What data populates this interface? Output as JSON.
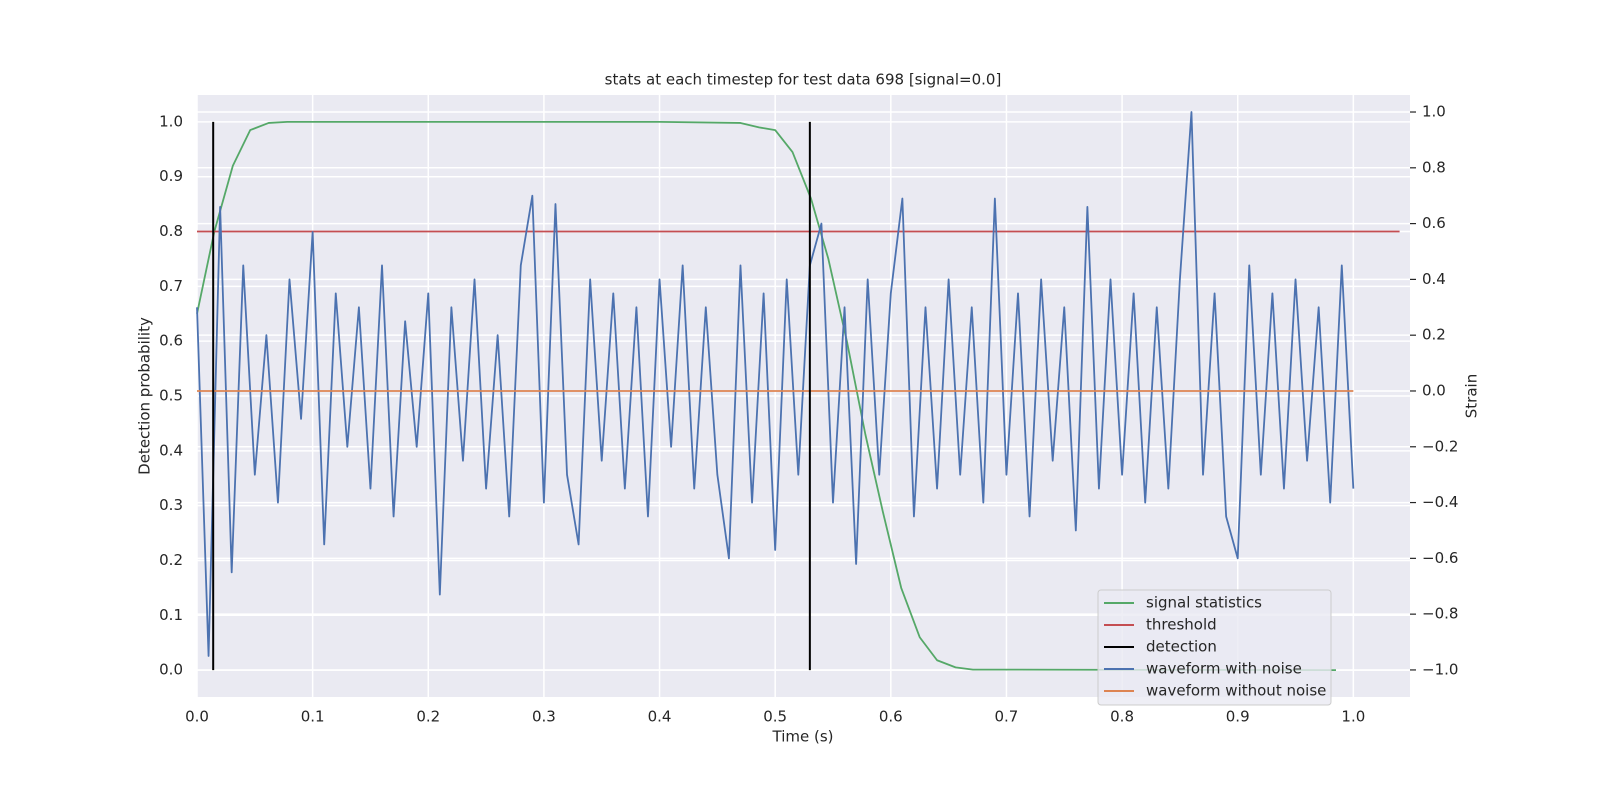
{
  "chart_data": {
    "type": "line",
    "title": "stats at each timestep for test data 698 [signal=0.0]",
    "xlabel": "Time (s)",
    "ylabel": "Detection probability",
    "y2label": "Strain",
    "xlim": [
      0,
      1.049
    ],
    "ylim": [
      -0.049,
      1.049
    ],
    "y2lim": [
      -1.097,
      1.061
    ],
    "xticks": [
      {
        "value": 0,
        "label": "0.0"
      },
      0.1,
      0.2,
      0.3,
      0.4,
      0.5,
      0.6,
      0.7,
      0.8,
      0.9,
      {
        "value": 1,
        "label": "1.0"
      }
    ],
    "yticks": [
      {
        "value": 0,
        "label": "0.0"
      },
      0.1,
      0.2,
      0.3,
      0.4,
      0.5,
      0.6,
      0.7,
      0.8,
      0.9,
      {
        "value": 1,
        "label": "1.0"
      }
    ],
    "y2ticks": [
      {
        "value": -1,
        "label": "−1.0"
      },
      {
        "value": -0.8,
        "label": "−0.8"
      },
      {
        "value": -0.6,
        "label": "−0.6"
      },
      {
        "value": -0.4,
        "label": "−0.4"
      },
      {
        "value": -0.2,
        "label": "−0.2"
      },
      {
        "value": 0,
        "label": "0.0"
      },
      0.2,
      0.4,
      0.6,
      0.8,
      {
        "value": 1,
        "label": "1.0"
      }
    ],
    "grid": true,
    "legend": "lower right",
    "series": [
      {
        "name": "signal statistics",
        "color": "#55a868",
        "axis": "y",
        "x": [
          0,
          0.015,
          0.031,
          0.046,
          0.062,
          0.078,
          0.2,
          0.4,
          0.47,
          0.486,
          0.5,
          0.515,
          0.531,
          0.546,
          0.562,
          0.578,
          0.593,
          0.609,
          0.625,
          0.64,
          0.656,
          0.671,
          0.985
        ],
        "values": [
          0.65,
          0.8,
          0.92,
          0.985,
          0.998,
          1.0,
          1.0,
          1.0,
          0.998,
          0.99,
          0.985,
          0.945,
          0.86,
          0.75,
          0.6,
          0.43,
          0.29,
          0.15,
          0.06,
          0.018,
          0.005,
          0.001,
          0
        ]
      },
      {
        "name": "threshold",
        "color": "#c44e52",
        "axis": "y",
        "x": [
          0,
          1.04
        ],
        "values": [
          0.8,
          0.8
        ]
      },
      {
        "name": "detection",
        "color": "#000000",
        "axis": "y",
        "vlines": true,
        "x": [
          0.014,
          0.53
        ],
        "ymin": 0,
        "ymax": 1
      },
      {
        "name": "waveform with noise",
        "color": "#4c72b0",
        "axis": "y2",
        "x": [
          0,
          0.01,
          0.02,
          0.03,
          0.04,
          0.05,
          0.06,
          0.07,
          0.08,
          0.09,
          0.1,
          0.11,
          0.12,
          0.13,
          0.14,
          0.15,
          0.16,
          0.17,
          0.18,
          0.19,
          0.2,
          0.21,
          0.22,
          0.23,
          0.24,
          0.25,
          0.26,
          0.27,
          0.28,
          0.29,
          0.3,
          0.31,
          0.32,
          0.33,
          0.34,
          0.35,
          0.36,
          0.37,
          0.38,
          0.39,
          0.4,
          0.41,
          0.42,
          0.43,
          0.44,
          0.45,
          0.46,
          0.47,
          0.48,
          0.49,
          0.5,
          0.51,
          0.52,
          0.53,
          0.54,
          0.55,
          0.56,
          0.57,
          0.58,
          0.59,
          0.6,
          0.61,
          0.62,
          0.63,
          0.64,
          0.65,
          0.66,
          0.67,
          0.68,
          0.69,
          0.7,
          0.71,
          0.72,
          0.73,
          0.74,
          0.75,
          0.76,
          0.77,
          0.78,
          0.79,
          0.8,
          0.81,
          0.82,
          0.83,
          0.84,
          0.85,
          0.86,
          0.87,
          0.88,
          0.89,
          0.9,
          0.91,
          0.92,
          0.93,
          0.94,
          0.95,
          0.96,
          0.97,
          0.98,
          0.99,
          1.0
        ],
        "values": [
          0.3,
          -0.95,
          0.66,
          -0.65,
          0.45,
          -0.3,
          0.2,
          -0.4,
          0.4,
          -0.1,
          0.57,
          -0.55,
          0.35,
          -0.2,
          0.3,
          -0.35,
          0.45,
          -0.45,
          0.25,
          -0.2,
          0.35,
          -0.73,
          0.3,
          -0.25,
          0.4,
          -0.35,
          0.2,
          -0.45,
          0.45,
          0.7,
          -0.4,
          0.67,
          -0.3,
          -0.55,
          0.4,
          -0.25,
          0.35,
          -0.35,
          0.3,
          -0.45,
          0.4,
          -0.2,
          0.45,
          -0.35,
          0.3,
          -0.3,
          -0.6,
          0.45,
          -0.4,
          0.35,
          -0.57,
          0.4,
          -0.3,
          0.45,
          0.6,
          -0.4,
          0.3,
          -0.62,
          0.4,
          -0.3,
          0.35,
          0.69,
          -0.45,
          0.3,
          -0.35,
          0.4,
          -0.3,
          0.3,
          -0.4,
          0.69,
          -0.3,
          0.35,
          -0.45,
          0.4,
          -0.25,
          0.3,
          -0.5,
          0.66,
          -0.35,
          0.4,
          -0.3,
          0.35,
          -0.4,
          0.3,
          -0.35,
          0.4,
          1.0,
          -0.3,
          0.35,
          -0.45,
          -0.6,
          0.45,
          -0.3,
          0.35,
          -0.35,
          0.4,
          -0.25,
          0.3,
          -0.4,
          0.45,
          -0.35
        ]
      },
      {
        "name": "waveform without noise",
        "color": "#dd8452",
        "axis": "y2",
        "x": [
          0,
          1
        ],
        "values": [
          0,
          0
        ]
      }
    ]
  }
}
